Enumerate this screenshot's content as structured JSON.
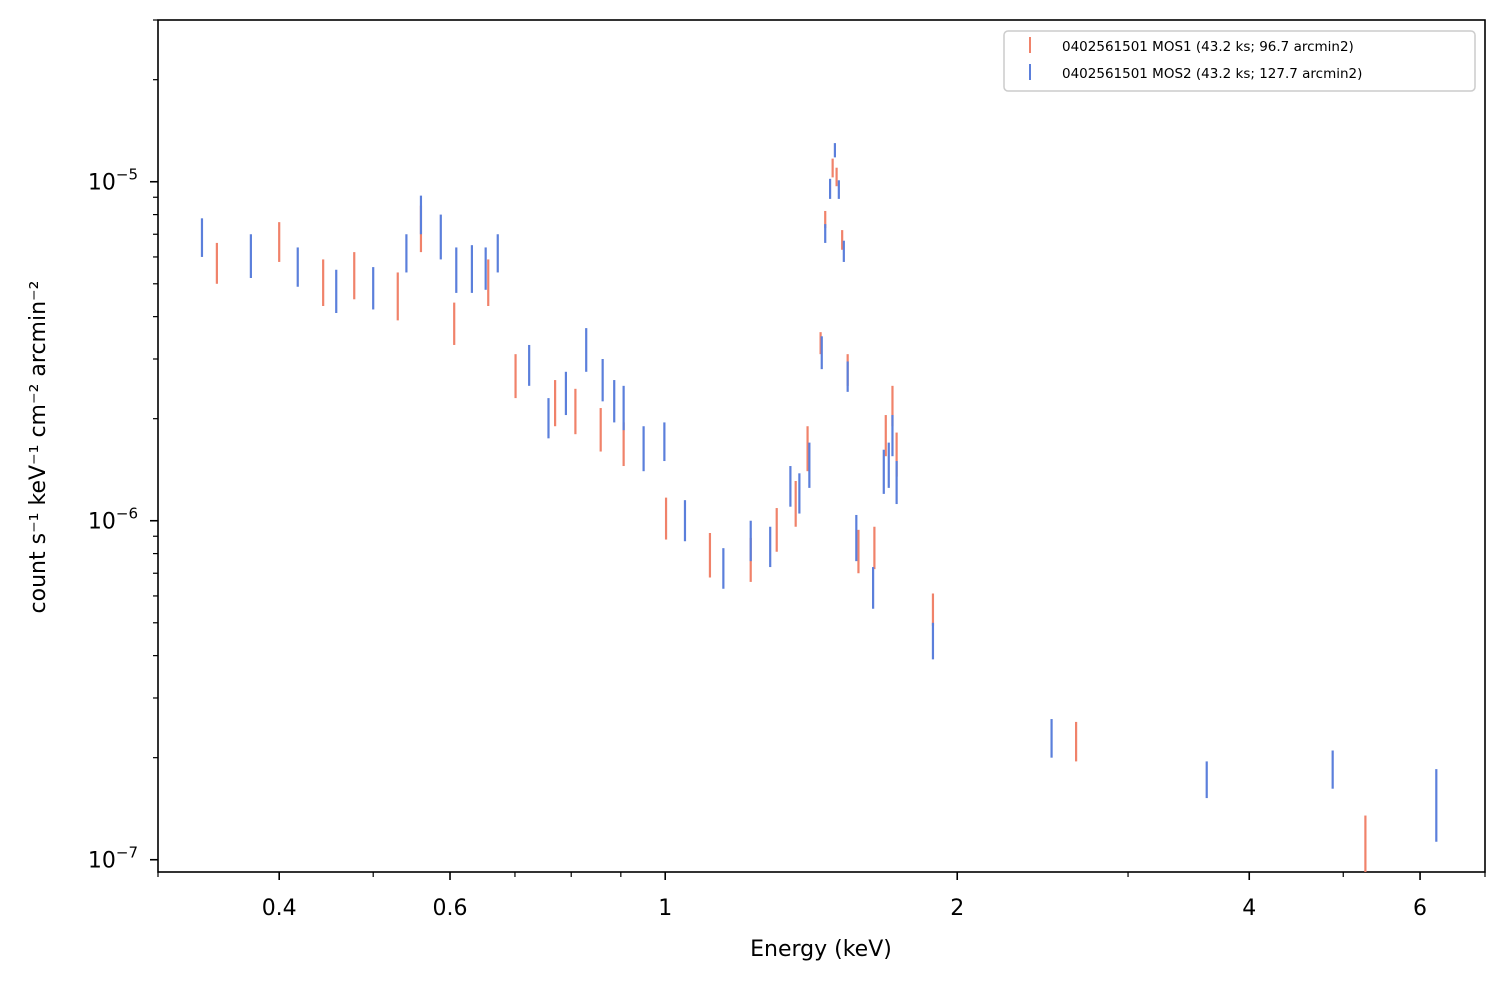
{
  "chart_data": {
    "type": "scatter",
    "title": "",
    "xlabel": "Energy (keV)",
    "ylabel": "count s⁻¹ keV⁻¹ cm⁻² arcmin⁻²",
    "x_scale": "log",
    "y_scale": "log",
    "xlim": [
      0.3,
      7.0
    ],
    "ylim": [
      9.2e-08,
      3e-05
    ],
    "x_ticks": [
      {
        "value": 0.4,
        "label": "0.4"
      },
      {
        "value": 0.6,
        "label": "0.6"
      },
      {
        "value": 1,
        "label": "1"
      },
      {
        "value": 2,
        "label": "2"
      },
      {
        "value": 4,
        "label": "4"
      },
      {
        "value": 6,
        "label": "6"
      }
    ],
    "y_ticks": [
      {
        "value": 1e-07,
        "base": "10",
        "exp": "−7"
      },
      {
        "value": 1e-06,
        "base": "10",
        "exp": "−6"
      },
      {
        "value": 1e-05,
        "base": "10",
        "exp": "−5"
      }
    ],
    "grid": false,
    "legend_position": "top-right",
    "series": [
      {
        "name": "0402561501 MOS1 (43.2 ks; 96.7 arcmin2)",
        "color": "#f0826a",
        "points": [
          [
            0.345,
            5e-06,
            6.6e-06
          ],
          [
            0.4,
            5.8e-06,
            7.6e-06
          ],
          [
            0.444,
            4.3e-06,
            5.9e-06
          ],
          [
            0.478,
            4.5e-06,
            6.2e-06
          ],
          [
            0.53,
            3.9e-06,
            5.4e-06
          ],
          [
            0.56,
            6.2e-06,
            8.5e-06
          ],
          [
            0.606,
            3.3e-06,
            4.4e-06
          ],
          [
            0.657,
            4.3e-06,
            5.9e-06
          ],
          [
            0.701,
            2.3e-06,
            3.1e-06
          ],
          [
            0.77,
            1.9e-06,
            2.6e-06
          ],
          [
            0.808,
            1.8e-06,
            2.45e-06
          ],
          [
            0.858,
            1.6e-06,
            2.15e-06
          ],
          [
            0.906,
            1.45e-06,
            1.95e-06
          ],
          [
            1.002,
            8.8e-07,
            1.17e-06
          ],
          [
            1.112,
            6.8e-07,
            9.2e-07
          ],
          [
            1.225,
            6.6e-07,
            8.9e-07
          ],
          [
            1.303,
            8.1e-07,
            1.09e-06
          ],
          [
            1.363,
            9.6e-07,
            1.31e-06
          ],
          [
            1.402,
            1.4e-06,
            1.9e-06
          ],
          [
            1.446,
            3.1e-06,
            3.6e-06
          ],
          [
            1.462,
            7.3e-06,
            8.2e-06
          ],
          [
            1.488,
            1.03e-05,
            1.17e-05
          ],
          [
            1.502,
            9.7e-06,
            1.1e-05
          ],
          [
            1.522,
            6.3e-06,
            7.2e-06
          ],
          [
            1.542,
            2.5e-06,
            3.1e-06
          ],
          [
            1.582,
            7e-07,
            9.4e-07
          ],
          [
            1.643,
            7.2e-07,
            9.6e-07
          ],
          [
            1.688,
            1.55e-06,
            2.05e-06
          ],
          [
            1.715,
            1.9e-06,
            2.5e-06
          ],
          [
            1.732,
            1.35e-06,
            1.82e-06
          ],
          [
            1.888,
            4.9e-07,
            6.1e-07
          ],
          [
            2.652,
            1.95e-07,
            2.55e-07
          ],
          [
            5.27,
            9.2e-08,
            1.35e-07
          ]
        ]
      },
      {
        "name": "0402561501 MOS2 (43.2 ks; 127.7 arcmin2)",
        "color": "#5b7fdb",
        "points": [
          [
            0.333,
            6e-06,
            7.8e-06
          ],
          [
            0.374,
            5.2e-06,
            7e-06
          ],
          [
            0.418,
            4.9e-06,
            6.4e-06
          ],
          [
            0.458,
            4.1e-06,
            5.5e-06
          ],
          [
            0.5,
            4.2e-06,
            5.6e-06
          ],
          [
            0.541,
            5.4e-06,
            7e-06
          ],
          [
            0.56,
            7e-06,
            9.1e-06
          ],
          [
            0.587,
            5.9e-06,
            8e-06
          ],
          [
            0.609,
            4.7e-06,
            6.4e-06
          ],
          [
            0.632,
            4.7e-06,
            6.5e-06
          ],
          [
            0.653,
            4.8e-06,
            6.4e-06
          ],
          [
            0.672,
            5.4e-06,
            7e-06
          ],
          [
            0.724,
            2.5e-06,
            3.3e-06
          ],
          [
            0.758,
            1.75e-06,
            2.3e-06
          ],
          [
            0.79,
            2.05e-06,
            2.75e-06
          ],
          [
            0.829,
            2.75e-06,
            3.7e-06
          ],
          [
            0.862,
            2.25e-06,
            3e-06
          ],
          [
            0.886,
            1.95e-06,
            2.6e-06
          ],
          [
            0.906,
            1.85e-06,
            2.5e-06
          ],
          [
            0.95,
            1.4e-06,
            1.9e-06
          ],
          [
            0.998,
            1.5e-06,
            1.95e-06
          ],
          [
            1.048,
            8.7e-07,
            1.15e-06
          ],
          [
            1.148,
            6.3e-07,
            8.3e-07
          ],
          [
            1.225,
            7.6e-07,
            1e-06
          ],
          [
            1.283,
            7.3e-07,
            9.6e-07
          ],
          [
            1.346,
            1.1e-06,
            1.45e-06
          ],
          [
            1.375,
            1.05e-06,
            1.38e-06
          ],
          [
            1.408,
            1.25e-06,
            1.7e-06
          ],
          [
            1.45,
            2.8e-06,
            3.5e-06
          ],
          [
            1.462,
            6.6e-06,
            7.5e-06
          ],
          [
            1.479,
            8.9e-06,
            1.02e-05
          ],
          [
            1.496,
            1.18e-05,
            1.3e-05
          ],
          [
            1.51,
            8.9e-06,
            1.01e-05
          ],
          [
            1.528,
            5.8e-06,
            6.7e-06
          ],
          [
            1.542,
            2.4e-06,
            2.95e-06
          ],
          [
            1.574,
            7.6e-07,
            1.04e-06
          ],
          [
            1.638,
            5.5e-07,
            7.3e-07
          ],
          [
            1.68,
            1.2e-06,
            1.62e-06
          ],
          [
            1.7,
            1.25e-06,
            1.7e-06
          ],
          [
            1.715,
            1.55e-06,
            2.05e-06
          ],
          [
            1.732,
            1.12e-06,
            1.5e-06
          ],
          [
            1.888,
            3.9e-07,
            5e-07
          ],
          [
            2.502,
            2e-07,
            2.6e-07
          ],
          [
            3.616,
            1.52e-07,
            1.95e-07
          ],
          [
            4.876,
            1.62e-07,
            2.1e-07
          ],
          [
            6.236,
            1.13e-07,
            1.85e-07
          ]
        ]
      }
    ]
  }
}
